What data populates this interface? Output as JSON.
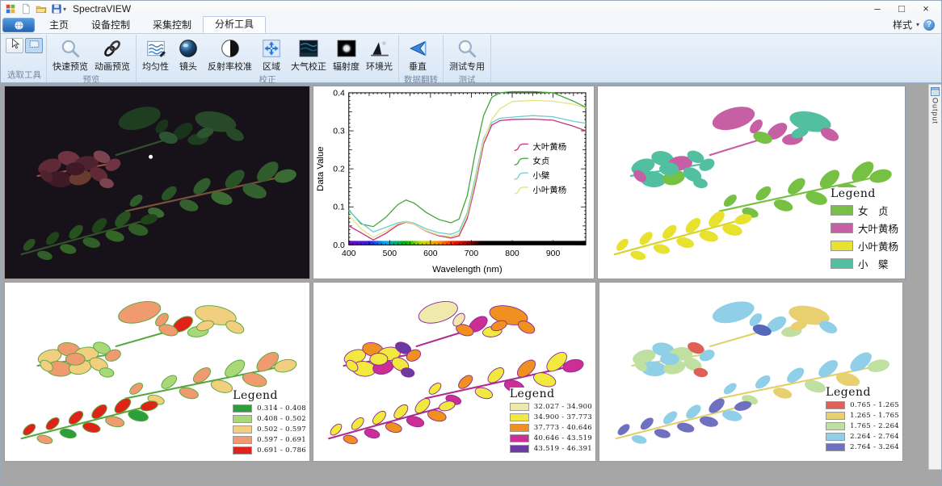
{
  "window": {
    "title": "SpectraVIEW",
    "controls": [
      {
        "name": "minimize",
        "glyph": "–"
      },
      {
        "name": "maximize",
        "glyph": "□"
      },
      {
        "name": "close",
        "glyph": "×"
      }
    ]
  },
  "quick_access": {
    "items": [
      {
        "icon": "app-logo-icon"
      },
      {
        "icon": "new-document-icon"
      },
      {
        "icon": "open-folder-icon"
      },
      {
        "icon": "save-icon"
      }
    ],
    "dropdown_glyph": "▾"
  },
  "tabs": [
    {
      "label": "主页",
      "active": false
    },
    {
      "label": "设备控制",
      "active": false
    },
    {
      "label": "采集控制",
      "active": false
    },
    {
      "label": "分析工具",
      "active": true
    }
  ],
  "style_button": {
    "label": "样式",
    "caret": "▾"
  },
  "help_button": {
    "glyph": "?"
  },
  "ribbon": {
    "groups": [
      {
        "label": "选取工具",
        "type": "small",
        "buttons": [
          {
            "icon": "cursor-icon",
            "name": "pointer-tool"
          },
          {
            "icon": "select-rect-icon",
            "name": "rect-select-tool",
            "selected": true
          }
        ]
      },
      {
        "label": "预览",
        "buttons": [
          {
            "label": "快速预览",
            "icon": "magnifier-icon",
            "name": "quick-preview"
          },
          {
            "label": "动画预览",
            "icon": "link-icon",
            "name": "animation-preview"
          }
        ]
      },
      {
        "label": "校正",
        "buttons": [
          {
            "label": "均匀性",
            "icon": "uniformity-icon",
            "name": "uniformity"
          },
          {
            "label": "镜头",
            "icon": "lens-icon",
            "name": "lens"
          },
          {
            "label": "反射率校准",
            "icon": "reflectance-icon",
            "name": "reflectance-calibration"
          },
          {
            "label": "区域",
            "icon": "region-icon",
            "name": "region"
          },
          {
            "label": "大气校正",
            "icon": "atmosphere-icon",
            "name": "atmospheric-correction"
          },
          {
            "label": "辐射度",
            "icon": "radiance-icon",
            "name": "radiance"
          },
          {
            "label": "环境光",
            "icon": "ambient-light-icon",
            "name": "ambient-light"
          }
        ]
      },
      {
        "label": "数据翻转",
        "buttons": [
          {
            "label": "垂直",
            "icon": "flip-vertical-icon",
            "name": "flip-vertical"
          }
        ]
      },
      {
        "label": "测试",
        "buttons": [
          {
            "label": "测试专用",
            "icon": "test-magnifier-icon",
            "name": "test-only"
          }
        ]
      }
    ]
  },
  "output_tab": {
    "label": "Output"
  },
  "chart_data": {
    "type": "line",
    "title": "",
    "xlabel": "Wavelength (nm)",
    "ylabel": "Data Value",
    "xlim": [
      400,
      980
    ],
    "ylim": [
      0.0,
      0.4
    ],
    "xticks": [
      400,
      500,
      600,
      700,
      800,
      900
    ],
    "yticks": [
      0.0,
      0.1,
      0.2,
      0.3,
      0.4
    ],
    "grid": false,
    "legend_position": "right-middle",
    "spectrum_bar": true,
    "x": [
      400,
      430,
      460,
      490,
      520,
      540,
      560,
      590,
      620,
      650,
      670,
      690,
      710,
      730,
      750,
      770,
      800,
      850,
      900,
      950,
      980
    ],
    "series": [
      {
        "name": "大叶黄杨",
        "color": "#c9327f",
        "values": [
          0.05,
          0.032,
          0.013,
          0.03,
          0.052,
          0.06,
          0.054,
          0.036,
          0.024,
          0.018,
          0.024,
          0.07,
          0.16,
          0.265,
          0.315,
          0.327,
          0.33,
          0.331,
          0.328,
          0.312,
          0.3
        ]
      },
      {
        "name": "女贞",
        "color": "#43a53b",
        "values": [
          0.092,
          0.055,
          0.048,
          0.072,
          0.106,
          0.118,
          0.11,
          0.085,
          0.067,
          0.058,
          0.068,
          0.13,
          0.245,
          0.34,
          0.388,
          0.4,
          0.403,
          0.403,
          0.4,
          0.378,
          0.362
        ]
      },
      {
        "name": "小檗",
        "color": "#6fcbd6",
        "values": [
          0.09,
          0.058,
          0.034,
          0.046,
          0.058,
          0.062,
          0.057,
          0.042,
          0.032,
          0.028,
          0.036,
          0.085,
          0.18,
          0.28,
          0.322,
          0.333,
          0.336,
          0.34,
          0.337,
          0.325,
          0.32
        ]
      },
      {
        "name": "小叶黄杨",
        "color": "#e3e47f",
        "values": [
          0.078,
          0.042,
          0.02,
          0.036,
          0.055,
          0.061,
          0.054,
          0.037,
          0.026,
          0.022,
          0.03,
          0.078,
          0.17,
          0.275,
          0.33,
          0.358,
          0.377,
          0.38,
          0.378,
          0.37,
          0.36
        ]
      }
    ]
  },
  "panels": {
    "photo": {
      "colors": {
        "bg": "#17111a",
        "stroke": null,
        "stems": {
          "A": "#a34b3c",
          "B": "#35502c",
          "C": "#7a5038",
          "D": "#35502c"
        },
        "clusters": {
          "A": [
            "#5f2936",
            "#6f3342",
            "#4f2230",
            "#7c4350",
            "#3f1a26",
            "#6a3b30"
          ],
          "B": [
            "#1f3d20",
            "#27492a",
            "#1a331b",
            "#2d5430"
          ],
          "C": [
            "#2f5c2a",
            "#3a6b33",
            "#295226",
            "#346030"
          ],
          "D": [
            "#27511f",
            "#2f5e26",
            "#1f441a",
            "#356427"
          ]
        },
        "marker": "#ffffff"
      }
    },
    "classification": {
      "legend": {
        "title": "Legend",
        "items": [
          {
            "label": "女　贞",
            "color": "#76c043"
          },
          {
            "label": "大叶黄杨",
            "color": "#c75fa5"
          },
          {
            "label": "小叶黄杨",
            "color": "#e8e22f"
          },
          {
            "label": "小　檗",
            "color": "#52bfa0"
          }
        ]
      },
      "colors": {
        "bg": "#ffffff",
        "stroke": null,
        "stems": {
          "A": "#52bfa0",
          "B": "#c75fa5",
          "C": "#76c043",
          "D": "#d8d22a"
        },
        "clusters": {
          "A": [
            "#52bfa0",
            "#52bfa0",
            "#c75fa5",
            "#52bfa0",
            "#52bfa0",
            "#76c043"
          ],
          "B": [
            "#c75fa5",
            "#52bfa0",
            "#c75fa5",
            "#76c043",
            "#c75fa5",
            "#c75fa5"
          ],
          "C": [
            "#76c043"
          ],
          "D": [
            "#e8e22f"
          ]
        }
      }
    },
    "index_map_green_red": {
      "legend": {
        "title": "Legend",
        "items": [
          {
            "label": "0.314 - 0.408",
            "color": "#2e9e3c"
          },
          {
            "label": "0.408 - 0.502",
            "color": "#a8d878"
          },
          {
            "label": "0.502 - 0.597",
            "color": "#f2cf7e"
          },
          {
            "label": "0.597 - 0.691",
            "color": "#f09a70"
          },
          {
            "label": "0.691 - 0.786",
            "color": "#e02318"
          }
        ]
      },
      "colors": {
        "bg": "#ffffff",
        "stroke": "#57a83c",
        "stems": {
          "A": "#57a83c",
          "B": "#57a83c",
          "C": "#57a83c",
          "D": "#57a83c"
        },
        "clusters": {
          "A": [
            "#f2cf7e",
            "#f09a70",
            "#f2cf7e",
            "#a8d878",
            "#f09a70",
            "#f2cf7e"
          ],
          "B": [
            "#f09a70",
            "#f2cf7e",
            "#e02318",
            "#f09a70",
            "#a8d878",
            "#f2cf7e"
          ],
          "C": [
            "#f09a70",
            "#f2cf7e",
            "#a8d878",
            "#f09a70"
          ],
          "D": [
            "#e02318",
            "#f09a70",
            "#e02318",
            "#2e9e3c",
            "#e02318",
            "#e02318"
          ]
        }
      }
    },
    "index_map_yellow_purple": {
      "legend": {
        "title": "Legend",
        "items": [
          {
            "label": "32.027 - 34.900",
            "color": "#efe9ac"
          },
          {
            "label": "34.900 - 37.773",
            "color": "#f2e93e"
          },
          {
            "label": "37.773 - 40.646",
            "color": "#f09020"
          },
          {
            "label": "40.646 - 43.519",
            "color": "#cc2e96"
          },
          {
            "label": "43.519 - 46.391",
            "color": "#6a3aa0"
          }
        ]
      },
      "colors": {
        "bg": "#ffffff",
        "stroke": "#8a2a9a",
        "stems": {
          "A": "#b02890",
          "B": "#b02890",
          "C": "#b02890",
          "D": "#b02890"
        },
        "clusters": {
          "A": [
            "#f2e93e",
            "#f09020",
            "#f2e93e",
            "#6a3aa0",
            "#f2e93e",
            "#cc2e96"
          ],
          "B": [
            "#efe9ac",
            "#f09020",
            "#cc2e96",
            "#f09020",
            "#f2e93e",
            "#f09020"
          ],
          "C": [
            "#f2e93e",
            "#cc2e96",
            "#f09020",
            "#f2e93e"
          ],
          "D": [
            "#f2e93e",
            "#f09020",
            "#f2e93e",
            "#cc2e96"
          ]
        }
      }
    },
    "index_map_blue": {
      "legend": {
        "title": "Legend",
        "items": [
          {
            "label": "0.765 - 1.265",
            "color": "#e06058"
          },
          {
            "label": "1.265 - 1.765",
            "color": "#e8d070"
          },
          {
            "label": "1.765 - 2.264",
            "color": "#bfe0a0"
          },
          {
            "label": "2.264 - 2.764",
            "color": "#8fcfe8"
          },
          {
            "label": "2.764 - 3.264",
            "color": "#7070c0"
          }
        ]
      },
      "colors": {
        "bg": "#ffffff",
        "stroke": null,
        "stems": {
          "A": "#e0cf6a",
          "B": "#e0cf6a",
          "C": "#e0cf6a",
          "D": "#e0cf6a"
        },
        "clusters": {
          "A": [
            "#bfe0a0",
            "#8fcfe8",
            "#bfe0a0",
            "#e06058",
            "#8fcfe8",
            "#bfe0a0"
          ],
          "B": [
            "#8fcfe8",
            "#e8d070",
            "#8fcfe8",
            "#5868b8",
            "#bfe0a0",
            "#8fcfe8"
          ],
          "C": [
            "#8fcfe8",
            "#bfe0a0",
            "#8fcfe8",
            "#e8d070"
          ],
          "D": [
            "#7070c0",
            "#8fcfe8",
            "#7070c0",
            "#7070c0",
            "#8fcfe8"
          ]
        }
      }
    }
  }
}
